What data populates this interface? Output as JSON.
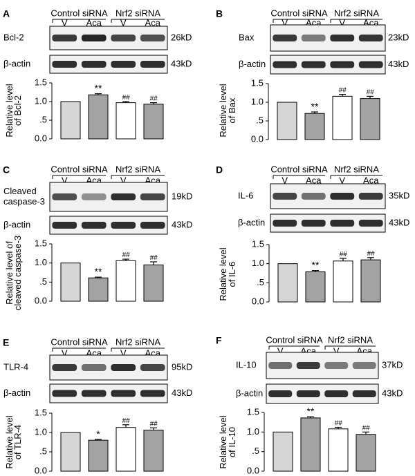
{
  "figure": {
    "colors": {
      "control_v": "#d6d6d6",
      "control_aca": "#a3a3a3",
      "nrf2_v": "#ffffff",
      "nrf2_aca": "#a3a3a3",
      "blot_bg": "#f1f1f1",
      "band": "#1a1a1a"
    },
    "yticks": [
      "0.0",
      ".5",
      "1.0",
      "1.5"
    ]
  },
  "chart_data": [
    {
      "panel": "A",
      "type": "bar",
      "title": "Bcl-2",
      "groups": [
        "Control siRNA",
        "Nrf2 siRNA"
      ],
      "categories": [
        "V",
        "Aca",
        "V",
        "Aca"
      ],
      "values": [
        1.0,
        1.18,
        0.97,
        0.93
      ],
      "errors": [
        0.0,
        0.03,
        0.03,
        0.04
      ],
      "significance": [
        "",
        "**",
        "##",
        "##"
      ],
      "ylabel": [
        "Relative level",
        "of Bcl-2"
      ],
      "ylim": [
        0,
        1.5
      ],
      "blots": [
        {
          "label": "Bcl-2",
          "size": "26kD",
          "intensity": [
            0.85,
            0.95,
            0.8,
            0.75
          ]
        },
        {
          "label": "β-actin",
          "size": "43kD",
          "intensity": [
            0.9,
            0.9,
            0.9,
            0.9
          ]
        }
      ]
    },
    {
      "panel": "B",
      "type": "bar",
      "title": "Bax",
      "groups": [
        "Control siRNA",
        "Nrf2 siRNA"
      ],
      "categories": [
        "V",
        "Aca",
        "V",
        "Aca"
      ],
      "values": [
        1.0,
        0.7,
        1.16,
        1.1
      ],
      "errors": [
        0.0,
        0.04,
        0.05,
        0.06
      ],
      "significance": [
        "",
        "**",
        "##",
        "##"
      ],
      "ylabel": [
        "Relative level",
        "of Bax"
      ],
      "ylim": [
        0,
        1.5
      ],
      "blots": [
        {
          "label": "Bax",
          "size": "23kD",
          "intensity": [
            0.85,
            0.55,
            0.9,
            0.88
          ]
        },
        {
          "label": "β-actin",
          "size": "43kD",
          "intensity": [
            0.9,
            0.9,
            0.9,
            0.9
          ]
        }
      ]
    },
    {
      "panel": "C",
      "type": "bar",
      "title": "Cleaved caspase-3",
      "groups": [
        "Control siRNA",
        "Nrf2 siRNA"
      ],
      "categories": [
        "V",
        "Aca",
        "V",
        "Aca"
      ],
      "values": [
        1.0,
        0.61,
        1.06,
        0.95
      ],
      "errors": [
        0.0,
        0.02,
        0.04,
        0.08
      ],
      "significance": [
        "",
        "**",
        "##",
        "##"
      ],
      "ylabel": [
        "Relative level of",
        "cleaved caspase-3"
      ],
      "ylim": [
        0,
        1.5
      ],
      "blots": [
        {
          "label": [
            "Cleaved",
            "caspase-3"
          ],
          "size": "19kD",
          "intensity": [
            0.75,
            0.45,
            0.9,
            0.8
          ]
        },
        {
          "label": "β-actin",
          "size": "43kD",
          "intensity": [
            0.9,
            0.9,
            0.9,
            0.9
          ]
        }
      ]
    },
    {
      "panel": "D",
      "type": "bar",
      "title": "IL-6",
      "groups": [
        "Control siRNA",
        "Nrf2 siRNA"
      ],
      "categories": [
        "V",
        "Aca",
        "V",
        "Aca"
      ],
      "values": [
        1.0,
        0.79,
        1.07,
        1.1
      ],
      "errors": [
        0.0,
        0.03,
        0.07,
        0.06
      ],
      "significance": [
        "",
        "**",
        "##",
        "##"
      ],
      "ylabel": [
        "Relative level",
        "of IL-6"
      ],
      "ylim": [
        0,
        1.5
      ],
      "blots": [
        {
          "label": "IL-6",
          "size": "35kD",
          "intensity": [
            0.8,
            0.6,
            0.9,
            0.85
          ]
        },
        {
          "label": "β-actin",
          "size": "43kD",
          "intensity": [
            0.9,
            0.9,
            0.9,
            0.9
          ]
        }
      ]
    },
    {
      "panel": "E",
      "type": "bar",
      "title": "TLR-4",
      "groups": [
        "Control siRNA",
        "Nrf2 siRNA"
      ],
      "categories": [
        "V",
        "Aca",
        "V",
        "Aca"
      ],
      "values": [
        1.0,
        0.8,
        1.13,
        1.06
      ],
      "errors": [
        0.0,
        0.02,
        0.07,
        0.06
      ],
      "significance": [
        "",
        "*",
        "##",
        "##"
      ],
      "ylabel": [
        "Relative level",
        "of TLR-4"
      ],
      "ylim": [
        0,
        1.5
      ],
      "blots": [
        {
          "label": "TLR-4",
          "size": "95kD",
          "intensity": [
            0.85,
            0.6,
            0.9,
            0.8
          ]
        },
        {
          "label": "β-actin",
          "size": "43kD",
          "intensity": [
            0.9,
            0.9,
            0.9,
            0.9
          ]
        }
      ]
    },
    {
      "panel": "F",
      "type": "bar",
      "title": "IL-10",
      "groups": [
        "Control siRNA",
        "Nrf2 siRNA"
      ],
      "categories": [
        "V",
        "Aca",
        "V",
        "Aca"
      ],
      "values": [
        1.0,
        1.36,
        1.08,
        0.94
      ],
      "errors": [
        0.0,
        0.03,
        0.04,
        0.06
      ],
      "significance": [
        "",
        "**",
        "##",
        "##"
      ],
      "ylabel": [
        "Relative level",
        "of IL-10"
      ],
      "ylim": [
        0,
        1.5
      ],
      "blots": [
        {
          "label": "IL-10",
          "size": "37kD",
          "intensity": [
            0.6,
            0.85,
            0.55,
            0.55
          ]
        },
        {
          "label": "β-actin",
          "size": "43kD",
          "intensity": [
            0.9,
            0.9,
            0.9,
            0.9
          ]
        }
      ]
    }
  ]
}
